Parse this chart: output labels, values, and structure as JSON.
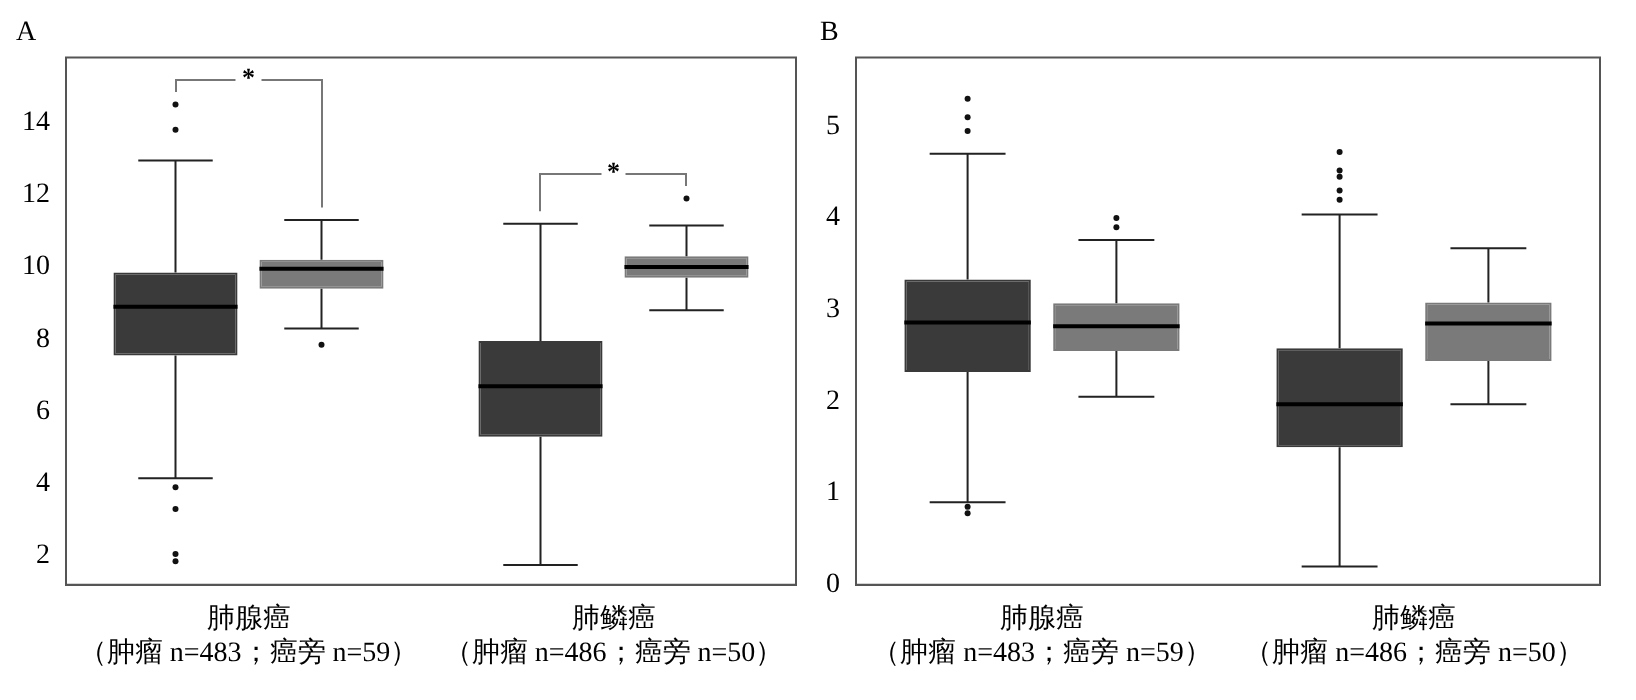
{
  "chart_data": [
    {
      "type": "box",
      "title": "A",
      "categories": [
        "肺腺癌（肿瘤 n=483；癌旁 n=59）",
        "肺鳞癌（肿瘤 n=486；癌旁 n=50）"
      ],
      "series": [
        {
          "color": "#3a3a3a",
          "boxes": [
            {
              "low": 4.15,
              "q1": 7.55,
              "median": 8.9,
              "q3": 9.85,
              "high": 12.95,
              "outliers": [
                14.5,
                13.8,
                3.9,
                3.3,
                2.05,
                1.85
              ]
            },
            {
              "low": 1.75,
              "q1": 5.3,
              "median": 6.7,
              "q3": 7.95,
              "high": 11.2
            }
          ]
        },
        {
          "color": "#7a7a7a",
          "boxes": [
            {
              "low": 8.3,
              "q1": 9.4,
              "median": 9.95,
              "q3": 10.2,
              "high": 11.3,
              "outliers": [
                7.85
              ]
            },
            {
              "low": 8.8,
              "q1": 9.7,
              "median": 10.0,
              "q3": 10.3,
              "high": 11.15,
              "outliers": [
                11.9
              ]
            }
          ]
        }
      ],
      "ylim": [
        1.2,
        15.8
      ],
      "yticks": [
        2,
        4,
        6,
        8,
        10,
        12,
        14
      ],
      "grid": false,
      "legend": false,
      "annotations": [
        "*",
        "*"
      ]
    },
    {
      "type": "box",
      "title": "B",
      "categories": [
        "肺腺癌（肿瘤 n=483；癌旁 n=59）",
        "肺鳞癌（肿瘤 n=486；癌旁 n=50）"
      ],
      "series": [
        {
          "color": "#3a3a3a",
          "boxes": [
            {
              "low": 0.9,
              "q1": 2.32,
              "median": 2.86,
              "q3": 3.33,
              "high": 4.7,
              "outliers": [
                5.3,
                5.1,
                4.95,
                0.85,
                0.78
              ]
            },
            {
              "low": 0.2,
              "q1": 1.5,
              "median": 1.97,
              "q3": 2.58,
              "high": 4.04,
              "outliers": [
                4.72,
                4.52,
                4.45,
                4.3,
                4.2
              ]
            }
          ]
        },
        {
          "color": "#7a7a7a",
          "boxes": [
            {
              "low": 2.05,
              "q1": 2.55,
              "median": 2.82,
              "q3": 3.07,
              "high": 3.76,
              "outliers": [
                4.0,
                3.9
              ]
            },
            {
              "low": 1.97,
              "q1": 2.44,
              "median": 2.85,
              "q3": 3.08,
              "high": 3.67
            }
          ]
        }
      ],
      "ylim": [
        0,
        5.75
      ],
      "yticks": [
        0,
        1,
        2,
        3,
        4,
        5
      ],
      "grid": false,
      "legend": false
    }
  ]
}
